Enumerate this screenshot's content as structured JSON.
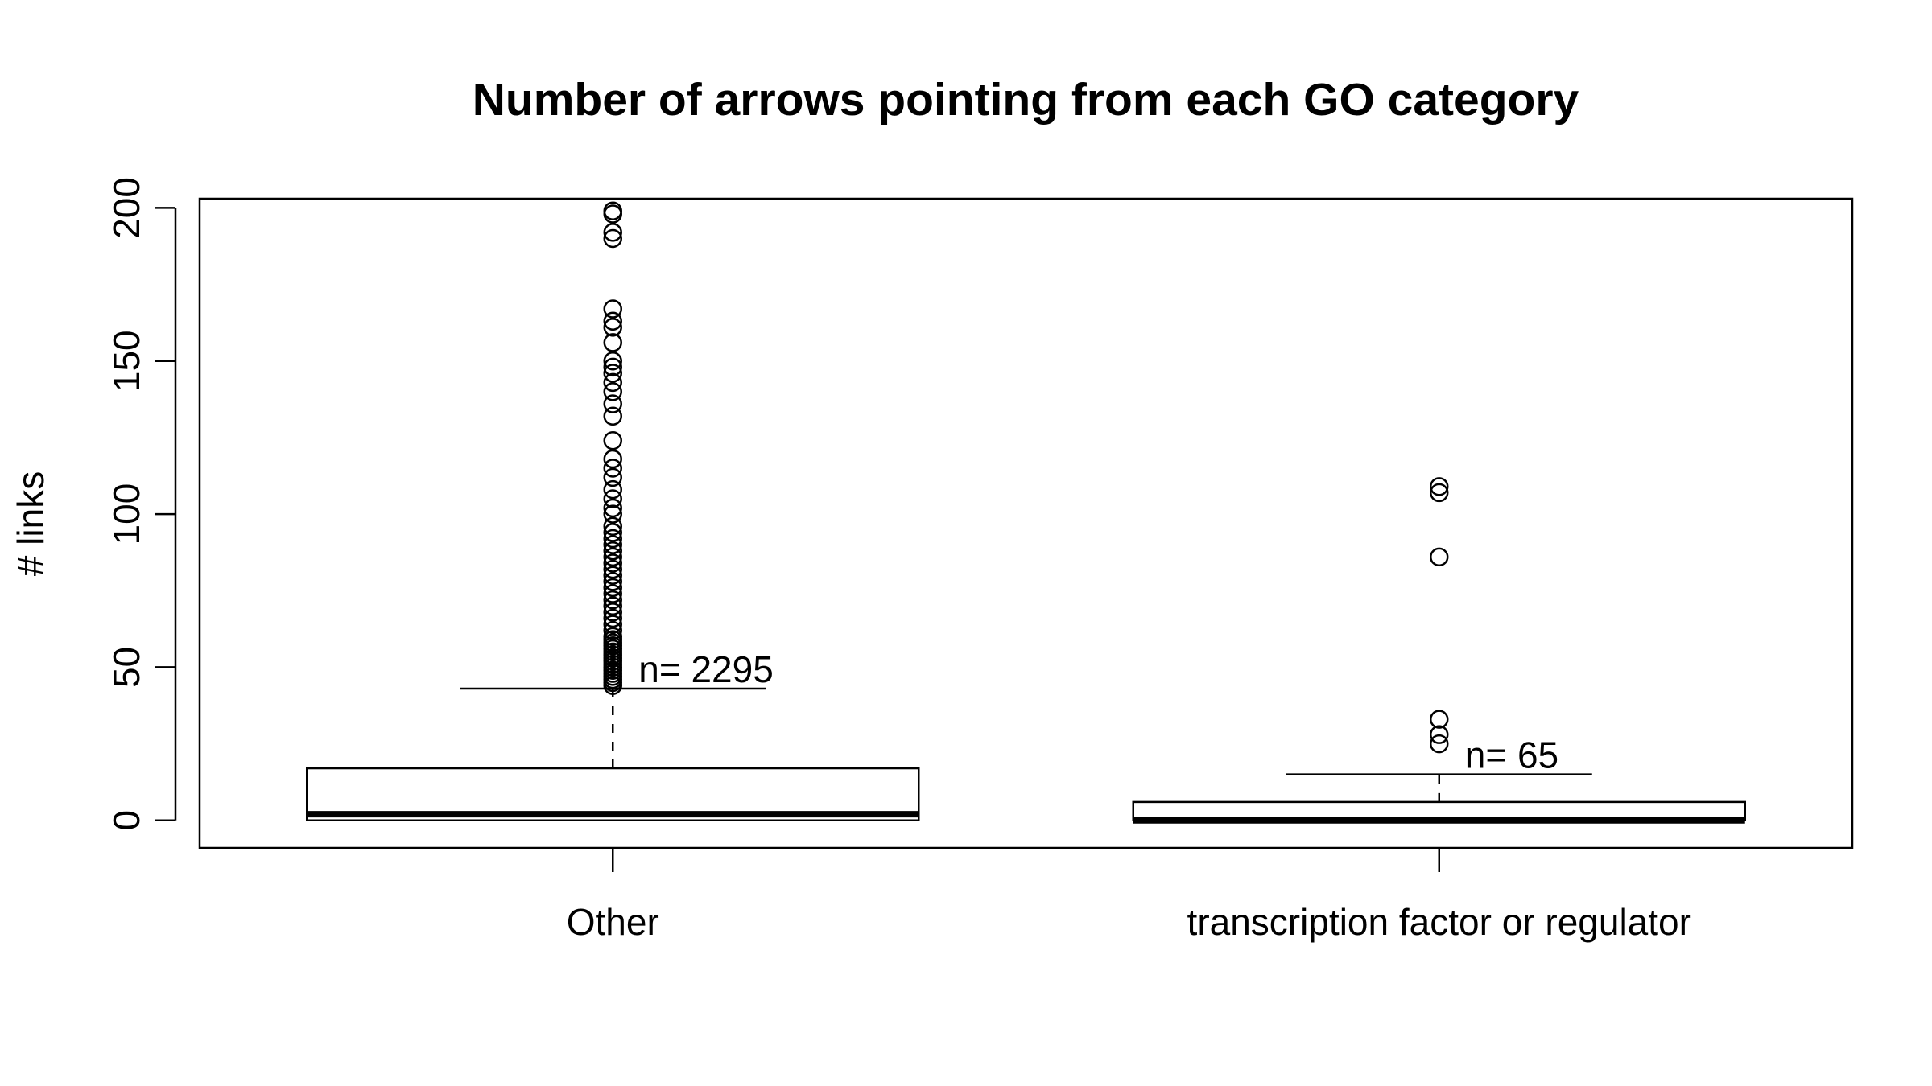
{
  "chart_data": {
    "type": "box",
    "title": "Number of arrows pointing from each GO category",
    "xlabel": "",
    "ylabel": "# links",
    "ylim": [
      -9,
      203
    ],
    "y_ticks": [
      0,
      50,
      100,
      150,
      200
    ],
    "grid": false,
    "categories": [
      "Other",
      "transcription factor or regulator"
    ],
    "boxes": [
      {
        "category": "Other",
        "min": 0,
        "q1": 0,
        "median": 2,
        "q3": 17,
        "whisker_low": 0,
        "whisker_high": 43,
        "n_label": "n= 2295",
        "outliers": [
          44,
          45,
          46,
          47,
          48,
          49,
          50,
          51,
          52,
          53,
          54,
          55,
          56,
          57,
          58,
          59,
          60,
          62,
          64,
          66,
          68,
          70,
          72,
          74,
          76,
          78,
          80,
          82,
          84,
          86,
          88,
          90,
          92,
          94,
          96,
          100,
          102,
          105,
          108,
          112,
          115,
          118,
          124,
          132,
          136,
          140,
          143,
          146,
          148,
          150,
          156,
          161,
          163,
          167,
          190,
          192,
          198,
          199
        ]
      },
      {
        "category": "transcription factor or regulator",
        "min": 0,
        "q1": 0,
        "median": 0,
        "q3": 6,
        "whisker_low": 0,
        "whisker_high": 15,
        "n_label": "n= 65",
        "outliers": [
          25,
          28,
          33,
          86,
          107,
          109
        ]
      }
    ]
  }
}
